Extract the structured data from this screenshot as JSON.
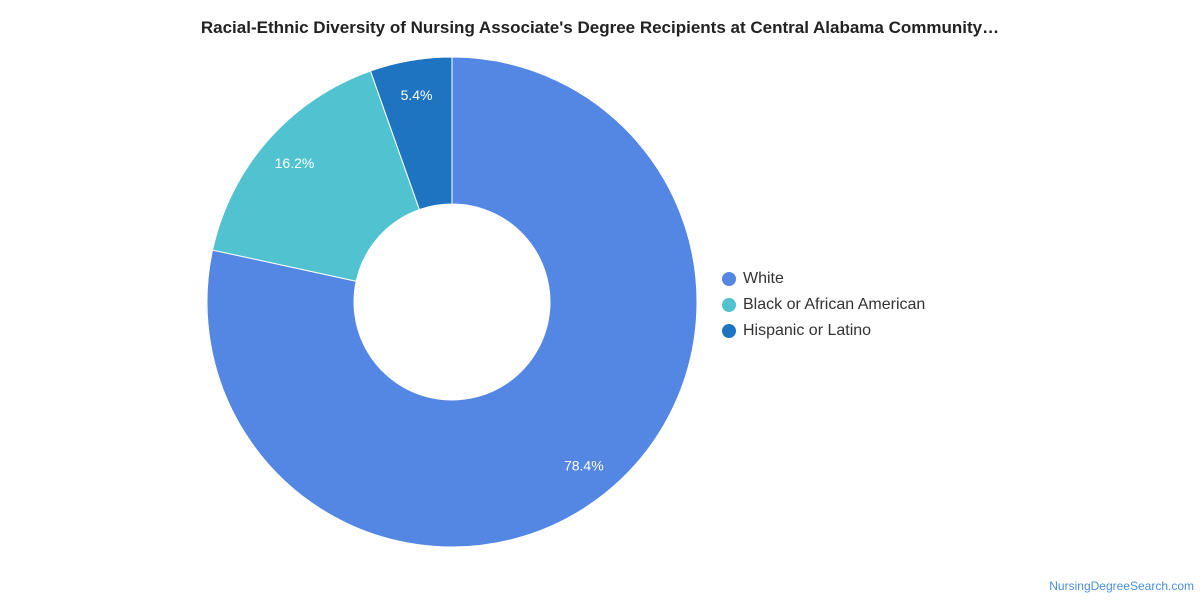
{
  "chart_data": {
    "type": "pie",
    "title": "Racial-Ethnic Diversity of Nursing Associate's Degree Recipients at Central Alabama Community…",
    "donut": true,
    "legend_position": "right",
    "categories": [
      "White",
      "Black or African American",
      "Hispanic or Latino"
    ],
    "values": [
      78.4,
      16.2,
      5.4
    ],
    "labels": [
      "78.4%",
      "16.2%",
      "5.4%"
    ],
    "colors": [
      "#5486e3",
      "#51c2cf",
      "#1f74c2"
    ]
  },
  "source": "NursingDegreeSearch.com"
}
